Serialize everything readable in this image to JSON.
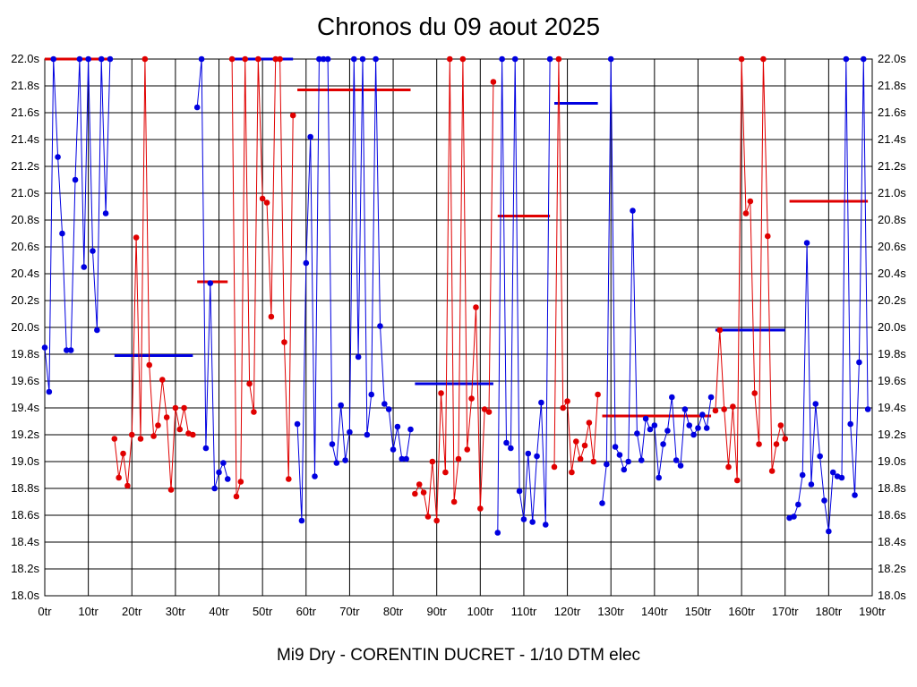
{
  "title": "Chronos du 09 aout 2025",
  "footer": "Mi9 Dry - CORENTIN DUCRET - 1/10 DTM elec",
  "chart_data": {
    "type": "line",
    "title": "Chronos du 09 aout 2025",
    "xlabel": "",
    "ylabel": "",
    "xlim": [
      0,
      190
    ],
    "ylim": [
      18.0,
      22.0
    ],
    "grid": true,
    "y_ticks": [
      "18.0s",
      "18.2s",
      "18.4s",
      "18.6s",
      "18.8s",
      "19.0s",
      "19.2s",
      "19.4s",
      "19.6s",
      "19.8s",
      "20.0s",
      "20.2s",
      "20.4s",
      "20.6s",
      "20.8s",
      "21.0s",
      "21.2s",
      "21.4s",
      "21.6s",
      "21.8s",
      "22.0s"
    ],
    "x_ticks": [
      "0tr",
      "10tr",
      "20tr",
      "30tr",
      "40tr",
      "50tr",
      "60tr",
      "70tr",
      "80tr",
      "90tr",
      "100tr",
      "110tr",
      "120tr",
      "130tr",
      "140tr",
      "150tr",
      "160tr",
      "170tr",
      "180tr",
      "190tr"
    ],
    "colors": {
      "blue": "#0000e0",
      "red": "#e00000",
      "grid": "#000000"
    },
    "series": [
      {
        "color": "blue",
        "points": [
          [
            0,
            19.85
          ],
          [
            1,
            19.52
          ],
          [
            2,
            22.0
          ],
          [
            3,
            21.27
          ],
          [
            4,
            20.7
          ],
          [
            5,
            19.83
          ],
          [
            6,
            19.83
          ],
          [
            7,
            21.1
          ],
          [
            8,
            22.0
          ],
          [
            9,
            20.45
          ],
          [
            10,
            22.0
          ],
          [
            11,
            20.57
          ],
          [
            12,
            19.98
          ],
          [
            13,
            22.0
          ],
          [
            14,
            20.85
          ],
          [
            15,
            22.0
          ]
        ]
      },
      {
        "color": "red",
        "points": [
          [
            16,
            19.17
          ],
          [
            17,
            18.88
          ],
          [
            18,
            19.06
          ],
          [
            19,
            18.82
          ],
          [
            20,
            19.2
          ],
          [
            21,
            20.67
          ],
          [
            22,
            19.17
          ],
          [
            23,
            22.0
          ],
          [
            24,
            19.72
          ],
          [
            25,
            19.19
          ],
          [
            26,
            19.27
          ],
          [
            27,
            19.61
          ],
          [
            28,
            19.33
          ],
          [
            29,
            18.79
          ],
          [
            30,
            19.4
          ],
          [
            31,
            19.24
          ],
          [
            32,
            19.4
          ],
          [
            33,
            19.21
          ],
          [
            34,
            19.2
          ]
        ]
      },
      {
        "color": "blue",
        "points": [
          [
            35,
            21.64
          ],
          [
            36,
            22.0
          ],
          [
            37,
            19.1
          ],
          [
            38,
            20.33
          ],
          [
            39,
            18.8
          ],
          [
            40,
            18.92
          ],
          [
            41,
            18.99
          ],
          [
            42,
            18.87
          ]
        ]
      },
      {
        "color": "red",
        "points": [
          [
            43,
            22.0
          ],
          [
            44,
            18.74
          ],
          [
            45,
            18.85
          ],
          [
            46,
            22.0
          ],
          [
            47,
            19.58
          ],
          [
            48,
            19.37
          ],
          [
            49,
            22.0
          ],
          [
            50,
            20.96
          ],
          [
            51,
            20.93
          ],
          [
            52,
            20.08
          ],
          [
            53,
            22.0
          ],
          [
            54,
            22.0
          ],
          [
            55,
            19.89
          ],
          [
            56,
            18.87
          ],
          [
            57,
            21.58
          ]
        ]
      },
      {
        "color": "blue",
        "points": [
          [
            58,
            19.28
          ],
          [
            59,
            18.56
          ],
          [
            60,
            20.48
          ],
          [
            61,
            21.42
          ],
          [
            62,
            18.89
          ],
          [
            63,
            22.0
          ],
          [
            64,
            22.0
          ],
          [
            65,
            22.0
          ],
          [
            66,
            19.13
          ],
          [
            67,
            18.99
          ],
          [
            68,
            19.42
          ],
          [
            69,
            19.01
          ],
          [
            70,
            19.22
          ],
          [
            71,
            22.0
          ],
          [
            72,
            19.78
          ],
          [
            73,
            22.0
          ],
          [
            74,
            19.2
          ],
          [
            75,
            19.5
          ],
          [
            76,
            22.0
          ],
          [
            77,
            20.01
          ],
          [
            78,
            19.43
          ],
          [
            79,
            19.39
          ],
          [
            80,
            19.09
          ],
          [
            81,
            19.26
          ],
          [
            82,
            19.02
          ],
          [
            83,
            19.02
          ],
          [
            84,
            19.24
          ]
        ]
      },
      {
        "color": "red",
        "points": [
          [
            85,
            18.76
          ],
          [
            86,
            18.83
          ],
          [
            87,
            18.77
          ],
          [
            88,
            18.59
          ],
          [
            89,
            19.0
          ],
          [
            90,
            18.56
          ],
          [
            91,
            19.51
          ],
          [
            92,
            18.92
          ],
          [
            93,
            22.0
          ],
          [
            94,
            18.7
          ],
          [
            95,
            19.02
          ],
          [
            96,
            22.0
          ],
          [
            97,
            19.09
          ],
          [
            98,
            19.47
          ],
          [
            99,
            20.15
          ],
          [
            100,
            18.65
          ],
          [
            101,
            19.39
          ],
          [
            102,
            19.37
          ],
          [
            103,
            21.83
          ]
        ]
      },
      {
        "color": "blue",
        "points": [
          [
            104,
            18.47
          ],
          [
            105,
            22.0
          ],
          [
            106,
            19.14
          ],
          [
            107,
            19.1
          ],
          [
            108,
            22.0
          ],
          [
            109,
            18.78
          ],
          [
            110,
            18.57
          ],
          [
            111,
            19.06
          ],
          [
            112,
            18.55
          ],
          [
            113,
            19.04
          ],
          [
            114,
            19.44
          ],
          [
            115,
            18.53
          ],
          [
            116,
            22.0
          ]
        ]
      },
      {
        "color": "red",
        "points": [
          [
            117,
            18.96
          ],
          [
            118,
            22.0
          ],
          [
            119,
            19.4
          ],
          [
            120,
            19.45
          ],
          [
            121,
            18.92
          ],
          [
            122,
            19.15
          ],
          [
            123,
            19.02
          ],
          [
            124,
            19.12
          ],
          [
            125,
            19.29
          ],
          [
            126,
            19.0
          ],
          [
            127,
            19.5
          ]
        ]
      },
      {
        "color": "blue",
        "points": [
          [
            128,
            18.69
          ],
          [
            129,
            18.98
          ],
          [
            130,
            22.0
          ],
          [
            131,
            19.11
          ],
          [
            132,
            19.05
          ],
          [
            133,
            18.94
          ],
          [
            134,
            19.0
          ],
          [
            135,
            20.87
          ],
          [
            136,
            19.21
          ],
          [
            137,
            19.01
          ],
          [
            138,
            19.32
          ],
          [
            139,
            19.24
          ],
          [
            140,
            19.27
          ],
          [
            141,
            18.88
          ],
          [
            142,
            19.13
          ],
          [
            143,
            19.23
          ],
          [
            144,
            19.48
          ],
          [
            145,
            19.01
          ],
          [
            146,
            18.97
          ],
          [
            147,
            19.39
          ],
          [
            148,
            19.27
          ],
          [
            149,
            19.2
          ],
          [
            150,
            19.25
          ],
          [
            151,
            19.35
          ],
          [
            152,
            19.25
          ],
          [
            153,
            19.48
          ]
        ]
      },
      {
        "color": "red",
        "points": [
          [
            154,
            19.38
          ],
          [
            155,
            19.98
          ],
          [
            156,
            19.39
          ],
          [
            157,
            18.96
          ],
          [
            158,
            19.41
          ],
          [
            159,
            18.86
          ],
          [
            160,
            22.0
          ],
          [
            161,
            20.85
          ],
          [
            162,
            20.94
          ],
          [
            163,
            19.51
          ],
          [
            164,
            19.13
          ],
          [
            165,
            22.0
          ],
          [
            166,
            20.68
          ],
          [
            167,
            18.93
          ],
          [
            168,
            19.13
          ],
          [
            169,
            19.27
          ],
          [
            170,
            19.17
          ]
        ]
      },
      {
        "color": "blue",
        "points": [
          [
            171,
            18.58
          ],
          [
            172,
            18.59
          ],
          [
            173,
            18.68
          ],
          [
            174,
            18.9
          ],
          [
            175,
            20.63
          ],
          [
            176,
            18.83
          ],
          [
            177,
            19.43
          ],
          [
            178,
            19.04
          ],
          [
            179,
            18.71
          ],
          [
            180,
            18.48
          ],
          [
            181,
            18.92
          ],
          [
            182,
            18.89
          ],
          [
            183,
            18.88
          ],
          [
            184,
            22.0
          ],
          [
            185,
            19.28
          ],
          [
            186,
            18.75
          ],
          [
            187,
            19.74
          ],
          [
            188,
            22.0
          ],
          [
            189,
            19.39
          ]
        ]
      }
    ],
    "averages": [
      {
        "color": "red",
        "x": [
          0,
          15
        ],
        "y": 22.0
      },
      {
        "color": "blue",
        "x": [
          16,
          34
        ],
        "y": 19.79
      },
      {
        "color": "red",
        "x": [
          35,
          42
        ],
        "y": 20.34
      },
      {
        "color": "blue",
        "x": [
          43,
          57
        ],
        "y": 22.0
      },
      {
        "color": "red",
        "x": [
          58,
          84
        ],
        "y": 21.77
      },
      {
        "color": "blue",
        "x": [
          85,
          103
        ],
        "y": 19.58
      },
      {
        "color": "red",
        "x": [
          104,
          116
        ],
        "y": 20.83
      },
      {
        "color": "blue",
        "x": [
          117,
          127
        ],
        "y": 21.67
      },
      {
        "color": "red",
        "x": [
          128,
          153
        ],
        "y": 19.34
      },
      {
        "color": "blue",
        "x": [
          154,
          170
        ],
        "y": 19.98
      },
      {
        "color": "red",
        "x": [
          171,
          189
        ],
        "y": 20.94
      }
    ]
  }
}
